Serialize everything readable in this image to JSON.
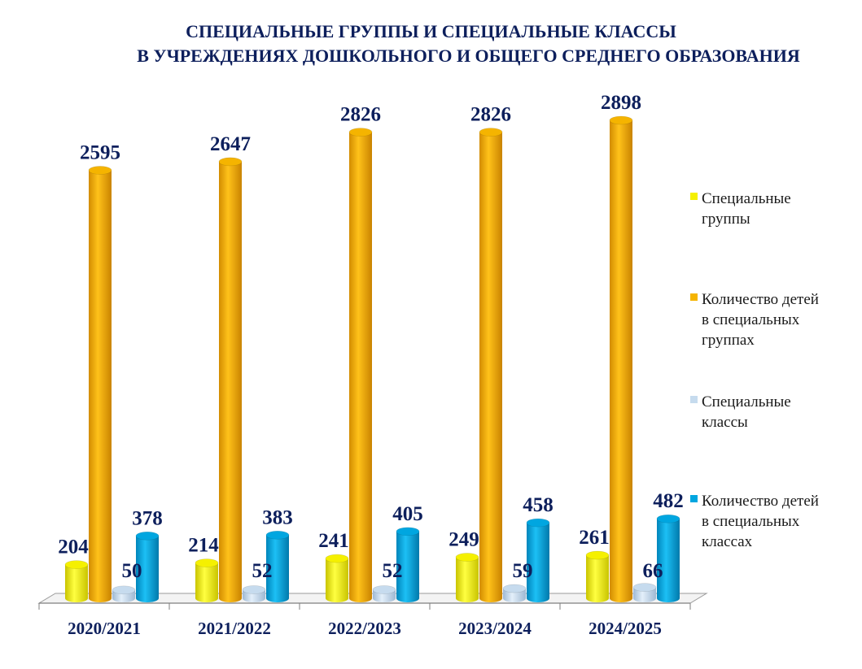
{
  "chart_data": {
    "type": "bar",
    "title_line1": "СПЕЦИАЛЬНЫЕ ГРУППЫ И СПЕЦИАЛЬНЫЕ КЛАССЫ",
    "title_line2": "В УЧРЕЖДЕНИЯХ ДОШКОЛЬНОГО И ОБЩЕГО СРЕДНЕГО ОБРАЗОВАНИЯ",
    "categories": [
      "2020/2021",
      "2021/2022",
      "2022/2023",
      "2023/2024",
      "2024/2025"
    ],
    "series": [
      {
        "name": "Специальные группы",
        "color": "#f5f000",
        "values": [
          204,
          214,
          241,
          249,
          261
        ]
      },
      {
        "name": "Количество детей в специальных группах",
        "color": "#f5b400",
        "values": [
          2595,
          2647,
          2826,
          2826,
          2898
        ]
      },
      {
        "name": "Специальные классы",
        "color": "#c6dbee",
        "values": [
          50,
          52,
          52,
          59,
          66
        ]
      },
      {
        "name": "Количество детей в специальных классах",
        "color": "#00a6e0",
        "values": [
          378,
          383,
          405,
          458,
          482
        ]
      }
    ],
    "ylim": [
      0,
      3000
    ],
    "data_labels": true,
    "legend_position": "right",
    "grid": false
  }
}
